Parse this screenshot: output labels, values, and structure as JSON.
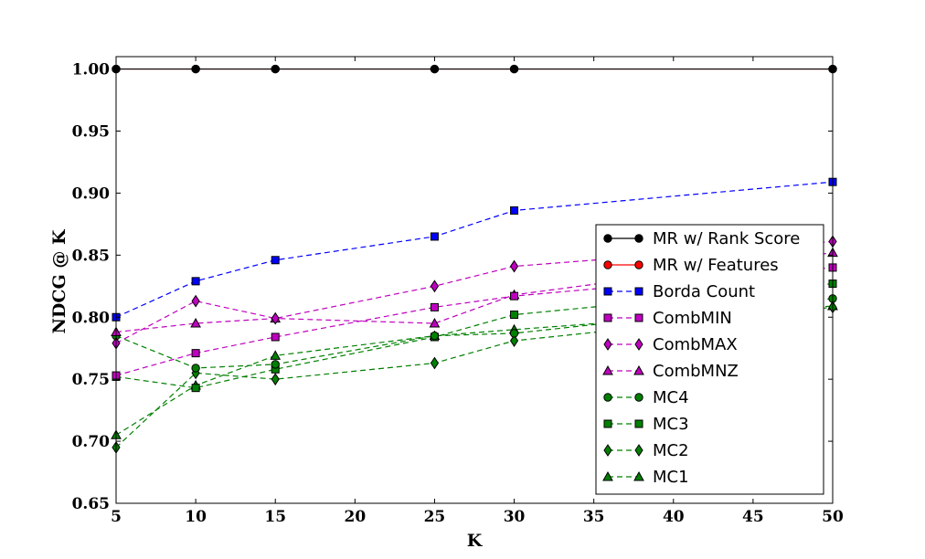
{
  "chart_data": {
    "type": "line",
    "xlabel": "K",
    "ylabel": "NDCG @ K",
    "xlim": [
      5,
      50
    ],
    "ylim": [
      0.65,
      1.01
    ],
    "xticks": [
      "5",
      "10",
      "15",
      "20",
      "25",
      "30",
      "35",
      "40",
      "45",
      "50"
    ],
    "yticks": [
      "0.65",
      "0.70",
      "0.75",
      "0.80",
      "0.85",
      "0.90",
      "0.95",
      "1.00"
    ],
    "grid": false,
    "legend_position": "lower-right",
    "x": [
      5,
      10,
      15,
      25,
      30,
      50
    ],
    "series": [
      {
        "name": "MR w/ Rank Score",
        "color": "#000000",
        "marker": "circle",
        "dash": "solid",
        "values": [
          1.0,
          1.0,
          1.0,
          1.0,
          1.0,
          1.0
        ]
      },
      {
        "name": "MR w/ Features",
        "color": "#ff0000",
        "marker": "circle",
        "dash": "solid",
        "values": [
          1.0,
          1.0,
          1.0,
          1.0,
          1.0,
          1.0
        ]
      },
      {
        "name": "Borda Count",
        "color": "#0000ff",
        "marker": "square",
        "dash": "dashed",
        "values": [
          0.8,
          0.829,
          0.846,
          0.865,
          0.886,
          0.909
        ]
      },
      {
        "name": "CombMIN",
        "color": "#bf00bf",
        "marker": "square",
        "dash": "dashed",
        "values": [
          0.753,
          0.771,
          0.784,
          0.808,
          0.817,
          0.84
        ]
      },
      {
        "name": "CombMAX",
        "color": "#bf00bf",
        "marker": "diamond",
        "dash": "dashed",
        "values": [
          0.779,
          0.813,
          0.799,
          0.825,
          0.841,
          0.861
        ]
      },
      {
        "name": "CombMNZ",
        "color": "#bf00bf",
        "marker": "triangle",
        "dash": "dashed",
        "values": [
          0.788,
          0.795,
          0.799,
          0.795,
          0.818,
          0.852
        ]
      },
      {
        "name": "MC4",
        "color": "#008000",
        "marker": "circle",
        "dash": "dashed",
        "values": [
          0.785,
          0.759,
          0.762,
          0.785,
          0.787,
          0.815
        ]
      },
      {
        "name": "MC3",
        "color": "#008000",
        "marker": "square",
        "dash": "dashed",
        "values": [
          0.752,
          0.743,
          0.758,
          0.784,
          0.802,
          0.827
        ]
      },
      {
        "name": "MC2",
        "color": "#008000",
        "marker": "diamond",
        "dash": "dashed",
        "values": [
          0.695,
          0.755,
          0.75,
          0.763,
          0.781,
          0.808
        ]
      },
      {
        "name": "MC1",
        "color": "#008000",
        "marker": "triangle",
        "dash": "dashed",
        "values": [
          0.705,
          0.745,
          0.769,
          0.785,
          0.79,
          0.809
        ]
      }
    ]
  }
}
